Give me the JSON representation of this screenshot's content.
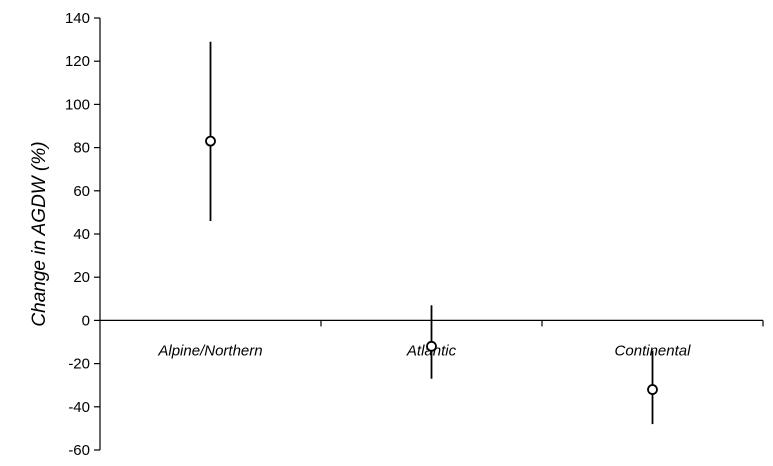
{
  "chart_data": {
    "type": "scatter",
    "title": "",
    "xlabel": "",
    "ylabel": "Change in AGDW (%)",
    "ylim": [
      -60,
      140
    ],
    "yticks": [
      140,
      120,
      100,
      80,
      60,
      40,
      20,
      0,
      -20,
      -40,
      -60
    ],
    "categories": [
      "Alpine/Northern",
      "Atlantic",
      "Continental"
    ],
    "series": [
      {
        "points": [
          {
            "category": "Alpine/Northern",
            "value": 83,
            "lower": 46,
            "upper": 129
          },
          {
            "category": "Atlantic",
            "value": -12,
            "lower": -27,
            "upper": 7
          },
          {
            "category": "Continental",
            "value": -32,
            "lower": -48,
            "upper": -14
          }
        ]
      }
    ],
    "grid": false,
    "legend": "none",
    "colors": {
      "axis": "#000000",
      "marker_fill": "#ffffff",
      "marker_stroke": "#000000"
    }
  }
}
